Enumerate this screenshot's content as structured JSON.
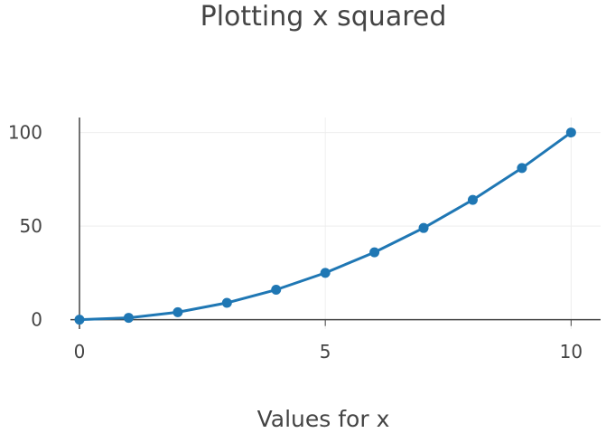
{
  "chart_data": {
    "type": "line",
    "title": "Plotting x squared",
    "xlabel": "Values for x",
    "ylabel": "",
    "x": [
      0,
      1,
      2,
      3,
      4,
      5,
      6,
      7,
      8,
      9,
      10
    ],
    "series": [
      {
        "values": [
          0,
          1,
          4,
          9,
          16,
          25,
          36,
          49,
          64,
          81,
          100
        ]
      }
    ],
    "xlim": [
      0,
      10.6
    ],
    "ylim": [
      -5,
      108
    ],
    "xticks": [
      0,
      5,
      10
    ],
    "xtick_labels": [
      "0",
      "5",
      "10"
    ],
    "yticks": [
      0,
      50,
      100
    ],
    "ytick_labels": [
      "0",
      "50",
      "100"
    ],
    "grid": true,
    "legend": "none",
    "markers": true,
    "colors": {
      "series": "#1f77b4",
      "text": "#444444",
      "grid": "#eeeeee",
      "axis": "#444444"
    }
  }
}
